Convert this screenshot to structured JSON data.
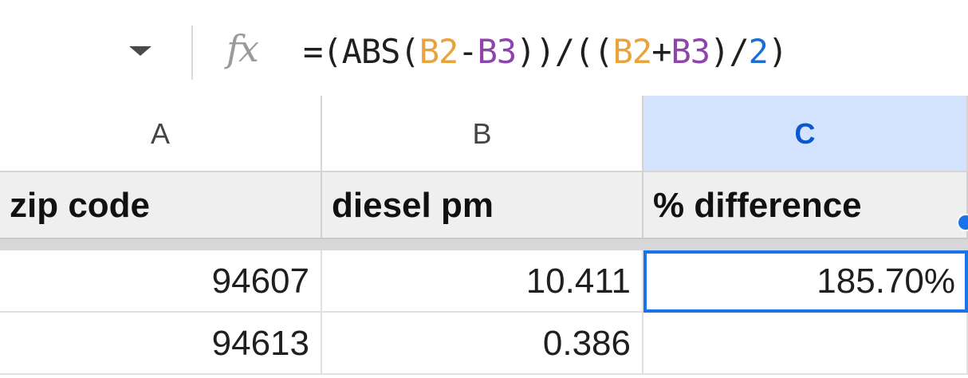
{
  "formula_bar": {
    "fx_label": "fx",
    "formula": {
      "p1": "=(ABS(",
      "ref1": "B2",
      "op1": "-",
      "ref2": "B3",
      "p2": "))/((",
      "ref3": "B2",
      "op2": "+",
      "ref4": "B3",
      "p3": ")/",
      "num": "2",
      "p4": ")"
    }
  },
  "columns": [
    "A",
    "B",
    "C"
  ],
  "header_row": [
    "zip code",
    "diesel pm",
    "% difference"
  ],
  "rows": [
    [
      "94607",
      "10.411",
      "185.70%"
    ],
    [
      "94613",
      "0.386",
      ""
    ]
  ],
  "colors": {
    "ref_b2": "#e8a33d",
    "ref_b3": "#8e44ad",
    "number": "#1a6fd1",
    "selection": "#1a73e8"
  },
  "selected_cell": "C2"
}
